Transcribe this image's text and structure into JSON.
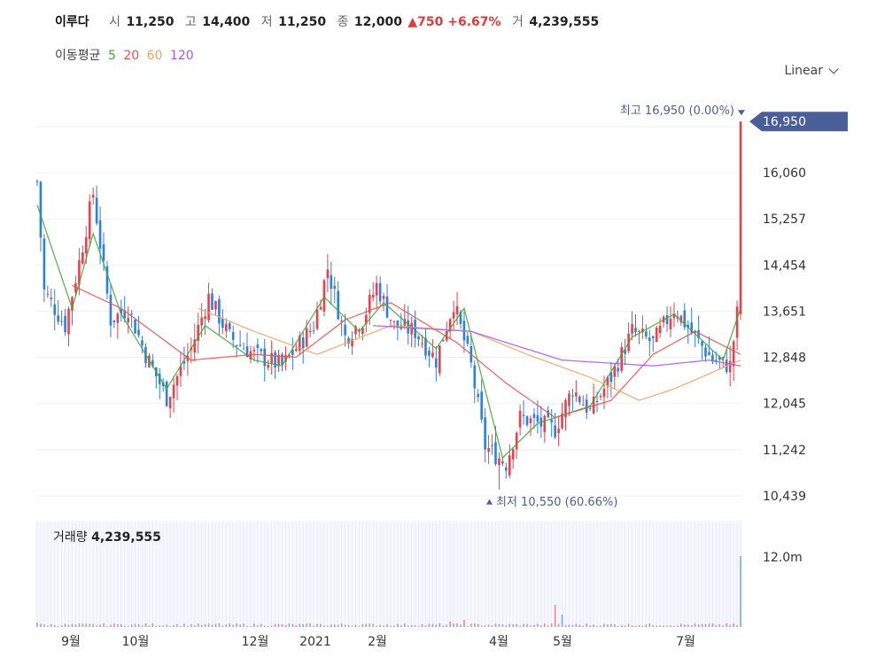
{
  "header": {
    "name": "이루다",
    "open_label": "시",
    "open": "11,250",
    "high_label": "고",
    "high": "14,400",
    "low_label": "저",
    "low": "11,250",
    "close_label": "종",
    "close": "12,000",
    "change": "▲750 +6.67%",
    "volume_label": "거",
    "volume": "4,239,555"
  },
  "moving_average": {
    "label": "이동평균",
    "periods": [
      "5",
      "20",
      "60",
      "120"
    ],
    "colors": [
      "#3aaa35",
      "#e8514d",
      "#f0a35e",
      "#a855f7"
    ]
  },
  "scale_selector": {
    "value": "Linear"
  },
  "colors": {
    "up": "#e8414d",
    "down": "#2f7fe0",
    "accent": "#4a5f9a"
  },
  "chart_data": {
    "type": "candlestick",
    "y_ticks": [
      "16,060",
      "15,257",
      "14,454",
      "13,651",
      "12,848",
      "12,045",
      "11,242",
      "10,439"
    ],
    "y_tick_values": [
      16060,
      15257,
      14454,
      13651,
      12848,
      12045,
      11242,
      10439
    ],
    "ylim": [
      10300,
      17200
    ],
    "x_ticks": [
      "9월",
      "10월",
      "12월",
      "2021",
      "2월",
      "4월",
      "5월",
      "7월"
    ],
    "last_price_badge": "16,950",
    "max_annotation": {
      "label": "최고",
      "value": "16,950 (0.00%)",
      "price": 16950
    },
    "min_annotation": {
      "label": "최저",
      "value": "10,550 (60.66%)",
      "price": 10550
    },
    "volume_label": "거래량",
    "volume_value": "4,239,555",
    "volume_tick": "12.0m",
    "path_points": [
      {
        "i": 0,
        "p": 15900
      },
      {
        "i": 2,
        "p": 14000
      },
      {
        "i": 8,
        "p": 13400
      },
      {
        "i": 12,
        "p": 14500
      },
      {
        "i": 16,
        "p": 15700
      },
      {
        "i": 21,
        "p": 13500
      },
      {
        "i": 26,
        "p": 13700
      },
      {
        "i": 31,
        "p": 12900
      },
      {
        "i": 37,
        "p": 12150
      },
      {
        "i": 44,
        "p": 13000
      },
      {
        "i": 49,
        "p": 13900
      },
      {
        "i": 55,
        "p": 13200
      },
      {
        "i": 62,
        "p": 12900
      },
      {
        "i": 70,
        "p": 12700
      },
      {
        "i": 79,
        "p": 13400
      },
      {
        "i": 83,
        "p": 14400
      },
      {
        "i": 88,
        "p": 13200
      },
      {
        "i": 93,
        "p": 13500
      },
      {
        "i": 97,
        "p": 14100
      },
      {
        "i": 102,
        "p": 13400
      },
      {
        "i": 108,
        "p": 13300
      },
      {
        "i": 114,
        "p": 12800
      },
      {
        "i": 119,
        "p": 13800
      },
      {
        "i": 124,
        "p": 12700
      },
      {
        "i": 128,
        "p": 11300
      },
      {
        "i": 134,
        "p": 11000
      },
      {
        "i": 138,
        "p": 11800
      },
      {
        "i": 143,
        "p": 11700
      },
      {
        "i": 148,
        "p": 11600
      },
      {
        "i": 153,
        "p": 12300
      },
      {
        "i": 158,
        "p": 11900
      },
      {
        "i": 164,
        "p": 12500
      },
      {
        "i": 170,
        "p": 13300
      },
      {
        "i": 176,
        "p": 13100
      },
      {
        "i": 182,
        "p": 13700
      },
      {
        "i": 188,
        "p": 13200
      },
      {
        "i": 193,
        "p": 12800
      },
      {
        "i": 198,
        "p": 12700
      },
      {
        "i": 200,
        "p": 13600
      },
      {
        "i": 201,
        "p": 16950
      }
    ],
    "ma_curves": {
      "ma5": [
        {
          "i": 0,
          "p": 15500
        },
        {
          "i": 10,
          "p": 13700
        },
        {
          "i": 16,
          "p": 15000
        },
        {
          "i": 24,
          "p": 13600
        },
        {
          "i": 37,
          "p": 12300
        },
        {
          "i": 48,
          "p": 13400
        },
        {
          "i": 62,
          "p": 12800
        },
        {
          "i": 70,
          "p": 12700
        },
        {
          "i": 82,
          "p": 13900
        },
        {
          "i": 92,
          "p": 13300
        },
        {
          "i": 99,
          "p": 13800
        },
        {
          "i": 114,
          "p": 13000
        },
        {
          "i": 122,
          "p": 13700
        },
        {
          "i": 133,
          "p": 11100
        },
        {
          "i": 143,
          "p": 11700
        },
        {
          "i": 158,
          "p": 12000
        },
        {
          "i": 170,
          "p": 13200
        },
        {
          "i": 182,
          "p": 13600
        },
        {
          "i": 196,
          "p": 12800
        },
        {
          "i": 201,
          "p": 13700
        }
      ],
      "ma20": [
        {
          "i": 10,
          "p": 14100
        },
        {
          "i": 24,
          "p": 13700
        },
        {
          "i": 44,
          "p": 12800
        },
        {
          "i": 62,
          "p": 12900
        },
        {
          "i": 74,
          "p": 12850
        },
        {
          "i": 88,
          "p": 13500
        },
        {
          "i": 101,
          "p": 13800
        },
        {
          "i": 120,
          "p": 13100
        },
        {
          "i": 134,
          "p": 12400
        },
        {
          "i": 148,
          "p": 11800
        },
        {
          "i": 164,
          "p": 12100
        },
        {
          "i": 176,
          "p": 12900
        },
        {
          "i": 188,
          "p": 13300
        },
        {
          "i": 201,
          "p": 12900
        }
      ],
      "ma60": [
        {
          "i": 46,
          "p": 13700
        },
        {
          "i": 62,
          "p": 13300
        },
        {
          "i": 80,
          "p": 12900
        },
        {
          "i": 101,
          "p": 13400
        },
        {
          "i": 124,
          "p": 13300
        },
        {
          "i": 140,
          "p": 12900
        },
        {
          "i": 158,
          "p": 12500
        },
        {
          "i": 172,
          "p": 12100
        },
        {
          "i": 182,
          "p": 12300
        },
        {
          "i": 201,
          "p": 12800
        }
      ],
      "ma120": [
        {
          "i": 96,
          "p": 13400
        },
        {
          "i": 124,
          "p": 13300
        },
        {
          "i": 150,
          "p": 12800
        },
        {
          "i": 176,
          "p": 12700
        },
        {
          "i": 192,
          "p": 12800
        },
        {
          "i": 201,
          "p": 12700
        }
      ]
    }
  }
}
